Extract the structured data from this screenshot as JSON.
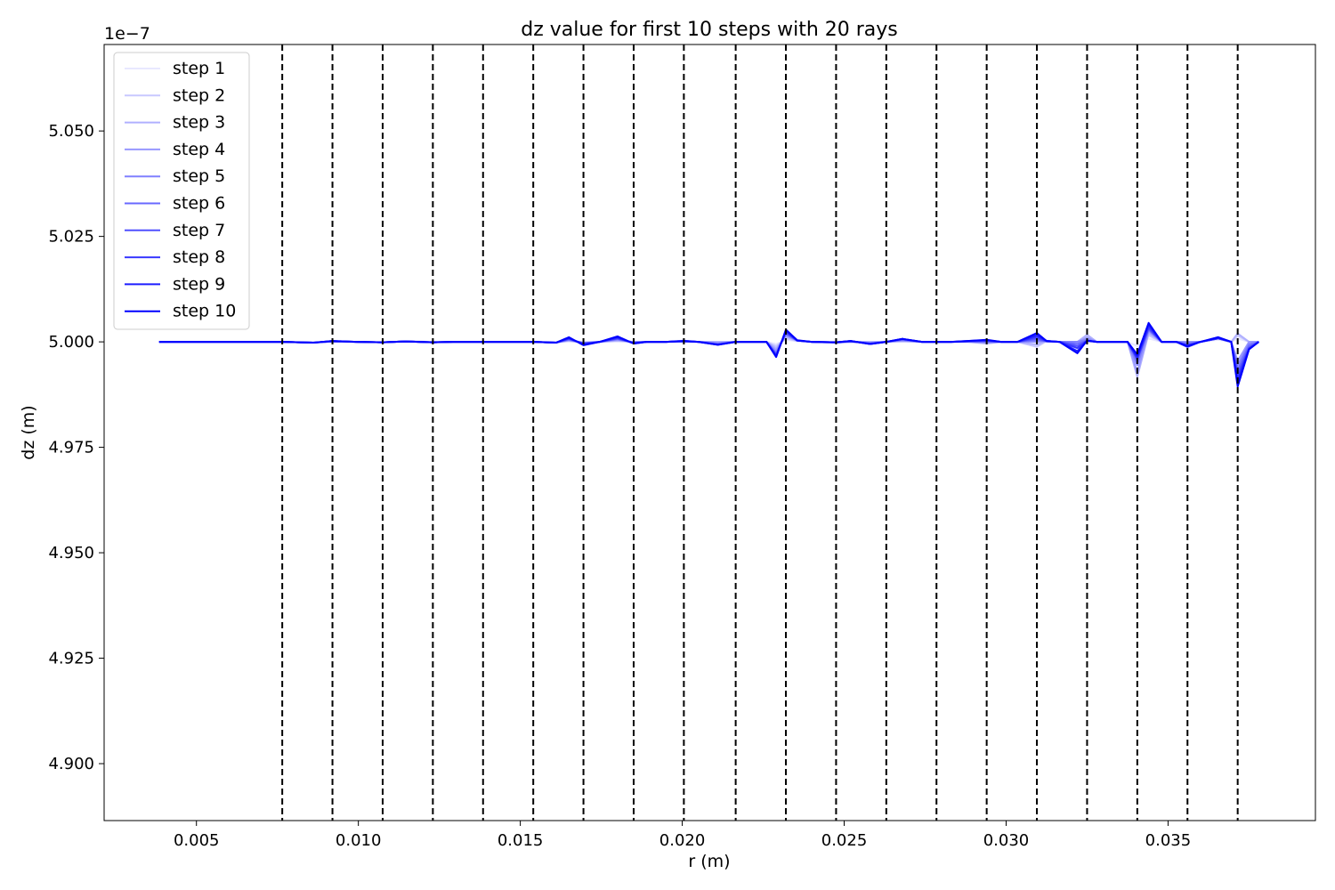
{
  "chart_data": {
    "type": "line",
    "title": "dz value for first 10 steps with 20 rays",
    "xlabel": "r (m)",
    "ylabel": "dz (m)",
    "y_offset_label": "1e−7",
    "y_scale": 1e-07,
    "xlim": [
      0.00215,
      0.03955
    ],
    "ylim": [
      4.8865,
      5.0705
    ],
    "xticks": [
      0.005,
      0.01,
      0.015,
      0.02,
      0.025,
      0.03,
      0.035
    ],
    "xtick_labels": [
      "0.005",
      "0.010",
      "0.015",
      "0.020",
      "0.025",
      "0.030",
      "0.035"
    ],
    "yticks": [
      4.9,
      4.925,
      4.95,
      4.975,
      5.0,
      5.025,
      5.05
    ],
    "ytick_labels": [
      "4.900",
      "4.925",
      "4.950",
      "4.975",
      "5.000",
      "5.025",
      "5.050"
    ],
    "grid": false,
    "legend_position": "top-left",
    "boundaries": [
      0.00765,
      0.0092,
      0.01075,
      0.0123,
      0.01385,
      0.0154,
      0.01695,
      0.0185,
      0.02005,
      0.02165,
      0.0232,
      0.02475,
      0.0263,
      0.02785,
      0.0294,
      0.03095,
      0.0325,
      0.03405,
      0.0356,
      0.03715
    ],
    "boundary_color": "#000000",
    "x": [
      0.00385,
      0.00455,
      0.00525,
      0.00595,
      0.00665,
      0.00765,
      0.0086,
      0.0092,
      0.00995,
      0.01075,
      0.01145,
      0.0123,
      0.013,
      0.01385,
      0.01455,
      0.0154,
      0.0161,
      0.0165,
      0.01695,
      0.01745,
      0.018,
      0.0185,
      0.0189,
      0.0195,
      0.02005,
      0.0205,
      0.0211,
      0.02165,
      0.022,
      0.0226,
      0.0229,
      0.0232,
      0.02355,
      0.024,
      0.02475,
      0.0252,
      0.0258,
      0.0263,
      0.0268,
      0.0274,
      0.02785,
      0.0283,
      0.0288,
      0.0294,
      0.02985,
      0.03035,
      0.03095,
      0.03125,
      0.03165,
      0.0322,
      0.0325,
      0.0328,
      0.03325,
      0.03375,
      0.03405,
      0.0344,
      0.0348,
      0.03525,
      0.0356,
      0.036,
      0.03655,
      0.03695,
      0.03715,
      0.0375,
      0.0378
    ],
    "series": [
      {
        "name": "step 1",
        "color": "#e8e8ff",
        "values": [
          5.0,
          5.0,
          5.0,
          5.0,
          5.0,
          5.0,
          4.9999,
          5.0001,
          5.0,
          5.0,
          5.0001,
          5.0,
          5.0,
          5.0,
          5.0,
          5.0,
          4.9999,
          5.0001,
          4.9999,
          5.0,
          5.0001,
          5.0,
          5.0,
          5.0,
          5.0001,
          5.0,
          5.0,
          5.0,
          5.0,
          5.0,
          4.9995,
          5.0005,
          5.0001,
          5.0,
          5.0,
          5.0,
          5.0,
          5.0,
          5.0,
          5.0,
          5.0,
          5.0,
          5.0,
          5.0,
          5.0,
          5.0,
          4.9995,
          5.0001,
          5.0,
          5.0,
          5.0,
          5.0,
          5.0,
          5.0,
          4.999,
          5.0008,
          5.0,
          5.0,
          5.0,
          5.0,
          5.0005,
          5.0,
          5.0008,
          5.0,
          5.0
        ]
      },
      {
        "name": "step 2",
        "color": "#c8c8ff",
        "values": [
          5.0,
          5.0,
          5.0,
          5.0,
          5.0,
          5.0,
          4.9999,
          5.0001,
          5.0,
          4.9999,
          5.0001,
          5.0,
          5.0,
          5.0,
          5.0,
          5.0,
          4.9999,
          5.0002,
          4.9999,
          5.0,
          5.0002,
          5.0,
          5.0,
          5.0,
          5.0002,
          5.0,
          5.0,
          5.0,
          5.0,
          5.0,
          4.999,
          5.0008,
          5.0002,
          5.0,
          5.0,
          5.0,
          5.0,
          5.0,
          5.0001,
          5.0,
          5.0,
          5.0,
          5.0,
          5.0,
          5.0,
          5.0,
          4.9988,
          5.0002,
          5.0,
          5.0,
          5.0012,
          5.0,
          5.0,
          5.0,
          4.997,
          5.0015,
          5.0,
          5.0,
          5.0,
          5.0,
          5.001,
          5.0,
          5.0015,
          5.0,
          5.0
        ]
      },
      {
        "name": "step 3",
        "color": "#b0b0ff",
        "values": [
          5.0,
          5.0,
          5.0,
          5.0,
          5.0,
          5.0,
          4.9998,
          5.0001,
          5.0,
          4.9999,
          5.0001,
          5.0,
          5.0,
          5.0,
          5.0,
          5.0,
          4.9999,
          5.0003,
          4.9998,
          5.0,
          5.0003,
          5.0,
          5.0,
          5.0,
          5.0003,
          5.0,
          5.0,
          5.0,
          5.0,
          5.0,
          4.9985,
          5.0012,
          5.0003,
          5.0,
          4.9998,
          5.0,
          5.0,
          5.0,
          5.0002,
          5.0,
          5.0,
          5.0,
          5.0,
          4.9996,
          5.0,
          5.0,
          4.9993,
          5.0003,
          5.0,
          5.0,
          5.0017,
          5.0,
          5.0,
          5.0,
          4.9917,
          5.002,
          5.0,
          5.0,
          5.0,
          5.0,
          5.0011,
          5.0,
          5.002,
          5.0,
          5.0
        ]
      },
      {
        "name": "step 4",
        "color": "#9898ff",
        "values": [
          5.0,
          5.0,
          5.0,
          5.0,
          5.0,
          5.0,
          4.9998,
          5.0001,
          5.0,
          4.9999,
          5.0001,
          4.9999,
          5.0,
          5.0,
          5.0,
          5.0,
          4.9998,
          5.0004,
          4.9998,
          5.0,
          5.0005,
          4.9999,
          5.0,
          5.0,
          5.0003,
          5.0,
          4.9998,
          5.0,
          5.0,
          5.0,
          4.998,
          5.0015,
          5.0003,
          5.0,
          4.9998,
          5.0,
          4.9998,
          5.0,
          5.0003,
          5.0,
          5.0,
          5.0,
          5.0001,
          4.9998,
          5.0,
          5.0,
          5.0,
          5.0002,
          5.0,
          5.0,
          5.001,
          5.0,
          5.0,
          5.0,
          4.9928,
          5.0025,
          5.0,
          5.0,
          5.0,
          5.0,
          5.0011,
          5.0,
          4.9955,
          5.0,
          5.0
        ]
      },
      {
        "name": "step 5",
        "color": "#8080ff",
        "values": [
          5.0,
          5.0,
          5.0,
          5.0,
          5.0,
          5.0,
          4.9998,
          5.0001,
          5.0,
          4.9999,
          5.0001,
          4.9999,
          5.0,
          5.0,
          5.0,
          5.0,
          4.9998,
          5.0005,
          4.9997,
          5.0,
          5.0006,
          4.9999,
          5.0,
          5.0,
          5.0002,
          5.0,
          4.9996,
          5.0,
          5.0,
          5.0,
          4.9975,
          5.0018,
          5.0003,
          5.0,
          4.9998,
          5.0001,
          4.9997,
          5.0,
          5.0004,
          5.0,
          5.0,
          5.0,
          5.0001,
          5.0,
          5.0,
          5.0,
          5.0003,
          5.0001,
          5.0,
          5.0,
          5.0005,
          5.0,
          5.0,
          5.0,
          4.9945,
          5.0028,
          5.0,
          5.0,
          4.9998,
          5.0,
          5.0009,
          5.0,
          4.9945,
          4.9995,
          5.0
        ]
      },
      {
        "name": "step 6",
        "color": "#6868ff",
        "values": [
          5.0,
          5.0,
          5.0,
          5.0,
          5.0,
          5.0,
          4.9998,
          5.0001,
          5.0,
          4.9999,
          5.0001,
          4.9999,
          5.0,
          5.0,
          5.0,
          5.0,
          4.9998,
          5.0006,
          4.9997,
          5.0,
          5.0007,
          4.9998,
          5.0,
          5.0,
          5.0002,
          5.0,
          4.9995,
          5.0,
          5.0,
          5.0,
          4.9972,
          5.002,
          5.0003,
          5.0,
          4.9999,
          5.0001,
          4.9996,
          5.0,
          5.0005,
          5.0,
          5.0,
          5.0,
          5.0001,
          5.0001,
          5.0,
          5.0,
          5.0006,
          5.0001,
          5.0,
          4.9995,
          5.0003,
          5.0,
          5.0,
          5.0,
          4.9955,
          5.003,
          5.0,
          5.0,
          4.9995,
          5.0,
          5.0008,
          5.0,
          4.9935,
          4.999,
          5.0
        ]
      },
      {
        "name": "step 7",
        "color": "#5050ff",
        "values": [
          5.0,
          5.0,
          5.0,
          5.0,
          5.0,
          5.0,
          4.9998,
          5.0001,
          5.0,
          4.9999,
          5.0001,
          4.9999,
          5.0,
          5.0,
          5.0,
          5.0,
          4.9998,
          5.0007,
          4.9996,
          5.0,
          5.0008,
          4.9998,
          5.0,
          5.0,
          5.0001,
          5.0,
          4.9994,
          5.0,
          5.0,
          5.0,
          4.997,
          5.0022,
          5.0003,
          5.0,
          4.9999,
          5.0001,
          4.9996,
          5.0,
          5.0006,
          5.0,
          5.0,
          5.0,
          5.0001,
          5.0002,
          5.0,
          5.0,
          5.0009,
          5.0001,
          5.0,
          4.999,
          5.0002,
          5.0,
          5.0,
          5.0,
          4.996,
          5.0032,
          5.0,
          5.0,
          4.9992,
          5.0,
          5.0008,
          5.0,
          4.9925,
          4.9985,
          5.0
        ]
      },
      {
        "name": "step 8",
        "color": "#3838ff",
        "values": [
          5.0,
          5.0,
          5.0,
          5.0,
          5.0,
          5.0,
          4.9998,
          5.0002,
          5.0,
          4.9999,
          5.0001,
          4.9999,
          5.0,
          5.0,
          5.0,
          5.0,
          4.9998,
          5.0008,
          4.9995,
          5.0,
          5.0009,
          4.9997,
          5.0,
          5.0,
          5.0001,
          5.0,
          4.9994,
          5.0,
          5.0,
          5.0,
          4.9968,
          5.0025,
          5.0003,
          5.0,
          4.9999,
          5.0002,
          4.9995,
          5.0,
          5.0007,
          5.0,
          5.0,
          5.0,
          5.0001,
          5.0003,
          5.0,
          5.0,
          5.0012,
          5.0002,
          5.0,
          4.9985,
          5.0003,
          5.0,
          5.0,
          5.0,
          4.996,
          5.0035,
          5.0,
          5.0,
          4.999,
          5.0,
          5.0008,
          5.0,
          4.9915,
          4.9985,
          5.0
        ]
      },
      {
        "name": "step 9",
        "color": "#1c1cff",
        "values": [
          5.0,
          5.0,
          5.0,
          5.0,
          5.0,
          5.0,
          4.9998,
          5.0002,
          5.0,
          4.9999,
          5.0001,
          4.9999,
          5.0,
          5.0,
          5.0,
          5.0,
          4.9998,
          5.0009,
          4.9994,
          5.0,
          5.0011,
          4.9996,
          5.0,
          5.0,
          5.0002,
          5.0,
          4.9993,
          5.0,
          5.0,
          5.0,
          4.9966,
          5.0027,
          5.0003,
          5.0,
          4.9999,
          5.0002,
          4.9995,
          5.0,
          5.0007,
          5.0,
          5.0,
          5.0,
          5.0002,
          5.0004,
          5.0,
          5.0,
          5.0016,
          5.0002,
          5.0,
          4.9978,
          5.0003,
          5.0,
          5.0,
          5.0,
          4.9965,
          5.004,
          5.0,
          5.0,
          4.9988,
          5.0,
          5.0009,
          5.0,
          4.9905,
          4.9983,
          5.0
        ]
      },
      {
        "name": "step 10",
        "color": "#0000ff",
        "values": [
          5.0,
          5.0,
          5.0,
          5.0,
          5.0,
          5.0,
          4.9998,
          5.0002,
          5.0,
          4.9999,
          5.0001,
          4.9999,
          5.0,
          5.0,
          5.0,
          5.0,
          4.9998,
          5.0011,
          4.9992,
          5.0,
          5.0013,
          4.9996,
          5.0,
          5.0,
          5.0002,
          5.0,
          4.9993,
          5.0,
          5.0,
          5.0,
          4.9964,
          5.0029,
          5.0004,
          5.0,
          4.9999,
          5.0002,
          4.9995,
          5.0,
          5.0007,
          5.0,
          5.0,
          5.0,
          5.0002,
          5.0005,
          5.0,
          5.0,
          5.0021,
          5.0002,
          5.0,
          4.9973,
          5.0003,
          5.0,
          5.0,
          5.0,
          4.997,
          5.0045,
          5.0,
          5.0,
          4.999,
          5.0,
          5.0011,
          5.0,
          4.9894,
          4.9982,
          5.0
        ]
      }
    ]
  }
}
